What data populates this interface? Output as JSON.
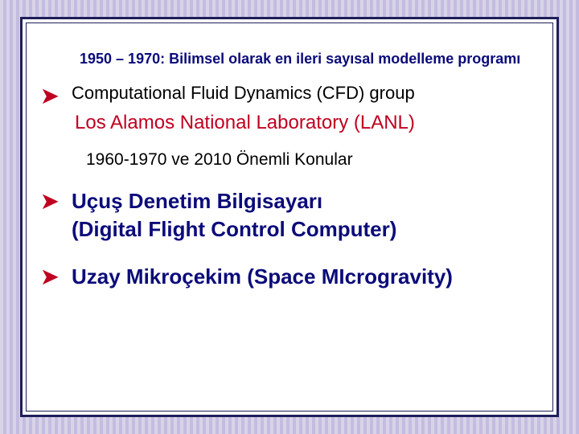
{
  "colors": {
    "frame_border": "#1f1e5a",
    "background_stripe_light": "#d8d4e8",
    "background_stripe_dark": "#c4bce0",
    "heading_blue": "#0b0b7a",
    "accent_red": "#c00020",
    "body_black": "#000000",
    "page_bg": "#ffffff"
  },
  "typography": {
    "family": "Comic Sans MS / handwritten",
    "heading1_size_pt": 14,
    "body_size_pt": 17,
    "lanl_size_pt": 18,
    "heading2_size_pt": 16,
    "big_size_pt": 20
  },
  "heading1": "1950 – 1970: Bilimsel olarak en ileri sayısal modelleme programı",
  "bullets": {
    "cfd": "Computational Fluid Dynamics (CFD) group",
    "lanl": "Los Alamos National Laboratory (LANL)",
    "flight_line1": "Uçuş Denetim Bilgisayarı",
    "flight_line2": "(Digital Flight Control Computer)",
    "space": "Uzay  Mikroçekim (Space MIcrogravity)"
  },
  "heading2": "1960-1970 ve 2010 Önemli Konular",
  "arrow_glyph": "➤"
}
